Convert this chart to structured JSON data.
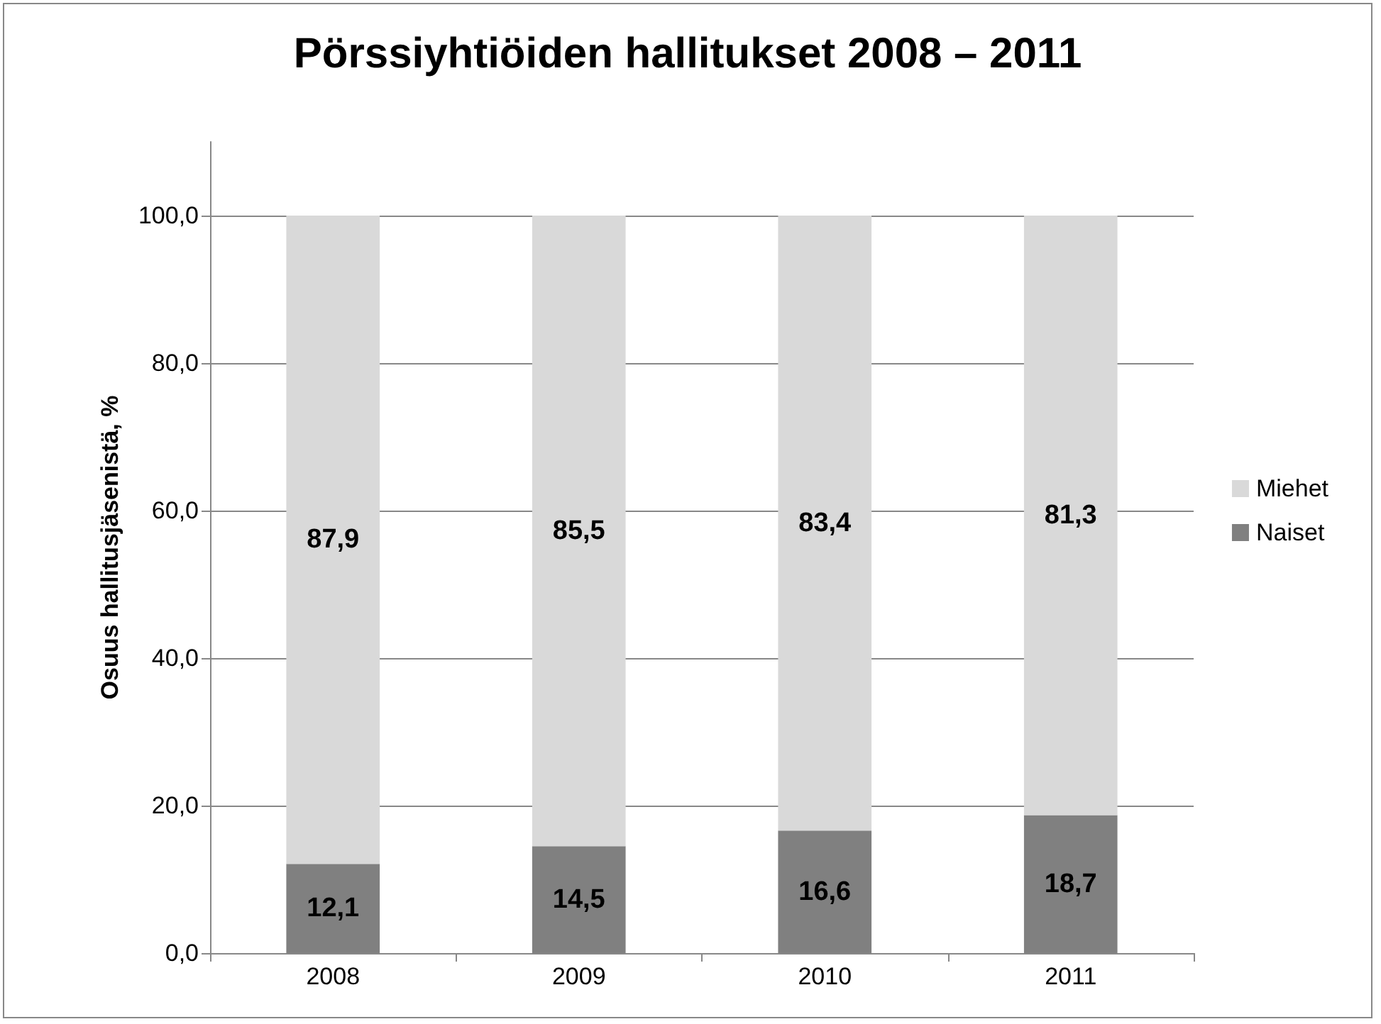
{
  "chart_data": {
    "type": "bar",
    "title": "Pörssiyhtiöiden hallitukset 2008 – 2011",
    "ylabel": "Osuus hallitusjäsenistä, %",
    "categories": [
      "2008",
      "2009",
      "2010",
      "2011"
    ],
    "stacked": true,
    "series": [
      {
        "name": "Naiset",
        "color": "#808080",
        "values": [
          12.1,
          14.5,
          16.6,
          18.7
        ],
        "value_labels": [
          "12,1",
          "14,5",
          "16,6",
          "18,7"
        ]
      },
      {
        "name": "Miehet",
        "color": "#d9d9d9",
        "values": [
          87.9,
          85.5,
          83.4,
          81.3
        ],
        "value_labels": [
          "87,9",
          "85,5",
          "83,4",
          "81,3"
        ]
      }
    ],
    "ylim": [
      0,
      110
    ],
    "yticks": [
      {
        "value": 0,
        "label": "0,0"
      },
      {
        "value": 20,
        "label": "20,0"
      },
      {
        "value": 40,
        "label": "40,0"
      },
      {
        "value": 60,
        "label": "60,0"
      },
      {
        "value": 80,
        "label": "80,0"
      },
      {
        "value": 100,
        "label": "100,0"
      }
    ],
    "grid": "y",
    "legend": "right"
  }
}
